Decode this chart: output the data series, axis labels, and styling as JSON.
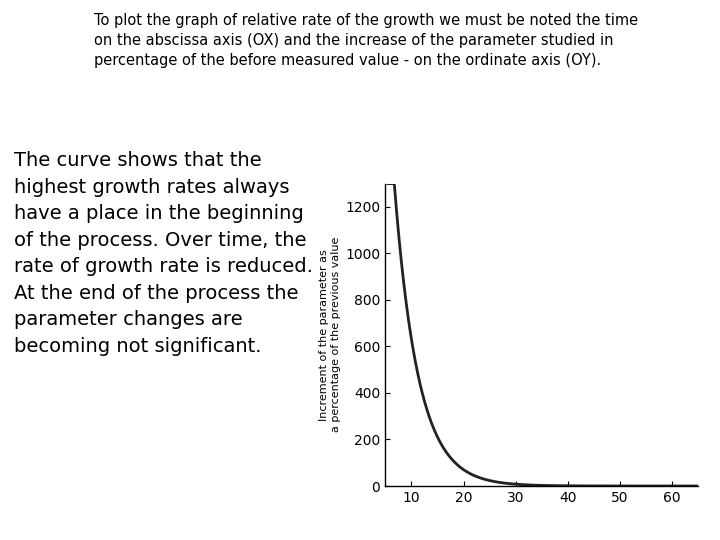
{
  "title_text": "To plot the graph of relative rate of the growth we must be noted the time\non the abscissa axis (OX) and the increase of the parameter studied in\npercentage of the before measured value - on the ordinate axis (OY).",
  "body_text": "The curve shows that the\nhighest growth rates always\nhave a place in the beginning\nof the process. Over time, the\nrate of growth rate is reduced.\nAt the end of the process the\nparameter changes are\nbecoming not significant.",
  "ylabel": "Increment of the parameter as\na percentage of the previous value",
  "xlim": [
    5,
    65
  ],
  "ylim": [
    0,
    1300
  ],
  "xticks": [
    10,
    20,
    30,
    40,
    50,
    60
  ],
  "yticks": [
    0,
    200,
    400,
    600,
    800,
    1000,
    1200
  ],
  "curve_color": "#222222",
  "bg_color": "#ffffff",
  "title_fontsize": 10.5,
  "body_fontsize": 14,
  "ylabel_fontsize": 8,
  "tick_labelsize": 10,
  "curve_A": 1100,
  "curve_k": 0.22,
  "curve_x0": 7.5
}
